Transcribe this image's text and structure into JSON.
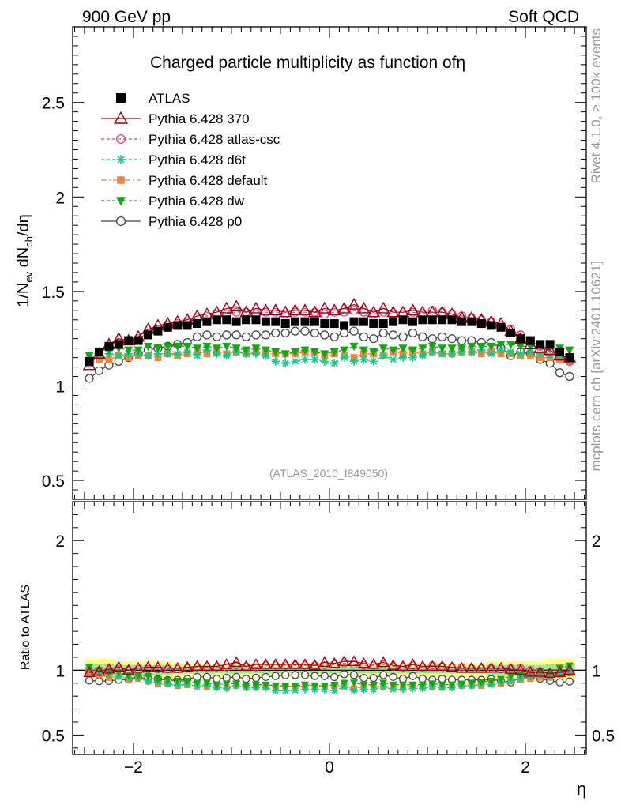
{
  "header": {
    "left": "900 GeV pp",
    "right": "Soft QCD"
  },
  "side_labels": {
    "rivet": "Rivet 4.1.0, ≥ 100k events",
    "mcplots": "mcplots.cern.ch [arXiv:2401.10621]"
  },
  "colors": {
    "atlas": "#000000",
    "p370": "#a00018",
    "atlas_csc": "#ef3f6a",
    "d6t": "#15c98a",
    "default": "#f5853a",
    "dw": "#13a813",
    "p0": "#444444",
    "band_outer": "#ffff80",
    "band_inner": "#9ee39e"
  },
  "chart_data": {
    "type": "scatter",
    "title": "Charged particle multiplicity as function of",
    "title_symbol": "η",
    "watermark": "(ATLAS_2010_I849050)",
    "xlabel": "η",
    "ylabel_main": "1/N",
    "ylabel_sub_ev": "ev",
    "ylabel_mid": " dN",
    "ylabel_sub_ch": "ch",
    "ylabel_tail": "/dη",
    "ylabel_ratio": "Ratio to ATLAS",
    "xlim": [
      -2.62,
      2.62
    ],
    "ylim_main": [
      0.4,
      2.9
    ],
    "ylim_ratio": [
      0.35,
      2.3
    ],
    "xticks": [
      -2,
      0,
      2
    ],
    "xtick_labels": [
      "−2",
      "0",
      "2"
    ],
    "yticks_main": [
      0.5,
      1,
      1.5,
      2,
      2.5
    ],
    "ytick_labels_main": [
      "0.5",
      "1",
      "1.5",
      "2",
      "2.5"
    ],
    "yticks_ratio": [
      0.5,
      1,
      2
    ],
    "ytick_labels_ratio": [
      "0.5",
      "1",
      "2"
    ],
    "x": [
      -2.45,
      -2.35,
      -2.25,
      -2.15,
      -2.05,
      -1.95,
      -1.85,
      -1.75,
      -1.65,
      -1.55,
      -1.45,
      -1.35,
      -1.25,
      -1.15,
      -1.05,
      -0.95,
      -0.85,
      -0.75,
      -0.65,
      -0.55,
      -0.45,
      -0.35,
      -0.25,
      -0.15,
      -0.05,
      0.05,
      0.15,
      0.25,
      0.35,
      0.45,
      0.55,
      0.65,
      0.75,
      0.85,
      0.95,
      1.05,
      1.15,
      1.25,
      1.35,
      1.45,
      1.55,
      1.65,
      1.75,
      1.85,
      1.95,
      2.05,
      2.15,
      2.25,
      2.35,
      2.45
    ],
    "series": [
      {
        "name": "ATLAS",
        "key": "atlas",
        "values": [
          1.13,
          1.18,
          1.21,
          1.22,
          1.24,
          1.24,
          1.27,
          1.29,
          1.31,
          1.32,
          1.32,
          1.33,
          1.34,
          1.35,
          1.35,
          1.34,
          1.35,
          1.35,
          1.34,
          1.34,
          1.33,
          1.34,
          1.34,
          1.34,
          1.33,
          1.33,
          1.32,
          1.34,
          1.34,
          1.33,
          1.33,
          1.34,
          1.35,
          1.34,
          1.35,
          1.35,
          1.35,
          1.35,
          1.34,
          1.34,
          1.33,
          1.32,
          1.31,
          1.28,
          1.25,
          1.24,
          1.22,
          1.22,
          1.18,
          1.15
        ]
      },
      {
        "name": "Pythia 6.428 370",
        "key": "p370",
        "values": [
          1.11,
          1.17,
          1.22,
          1.25,
          1.24,
          1.26,
          1.3,
          1.32,
          1.33,
          1.34,
          1.35,
          1.37,
          1.38,
          1.39,
          1.41,
          1.42,
          1.39,
          1.41,
          1.4,
          1.4,
          1.39,
          1.4,
          1.4,
          1.39,
          1.41,
          1.4,
          1.41,
          1.43,
          1.41,
          1.39,
          1.41,
          1.39,
          1.39,
          1.4,
          1.39,
          1.39,
          1.39,
          1.38,
          1.36,
          1.36,
          1.35,
          1.34,
          1.33,
          1.29,
          1.25,
          1.22,
          1.2,
          1.19,
          1.16,
          1.15
        ]
      },
      {
        "name": "Pythia 6.428 atlas-csc",
        "key": "atlas_csc",
        "values": [
          1.12,
          1.17,
          1.21,
          1.23,
          1.24,
          1.25,
          1.28,
          1.3,
          1.32,
          1.33,
          1.34,
          1.36,
          1.37,
          1.38,
          1.38,
          1.39,
          1.39,
          1.38,
          1.39,
          1.39,
          1.38,
          1.39,
          1.39,
          1.39,
          1.38,
          1.39,
          1.39,
          1.4,
          1.39,
          1.38,
          1.39,
          1.38,
          1.38,
          1.39,
          1.38,
          1.4,
          1.39,
          1.38,
          1.37,
          1.36,
          1.35,
          1.34,
          1.32,
          1.3,
          1.27,
          1.24,
          1.21,
          1.18,
          1.16,
          1.13
        ]
      },
      {
        "name": "Pythia 6.428 d6t",
        "key": "d6t",
        "values": [
          1.15,
          1.16,
          1.17,
          1.16,
          1.17,
          1.17,
          1.16,
          1.17,
          1.17,
          1.17,
          1.18,
          1.16,
          1.19,
          1.17,
          1.16,
          1.18,
          1.17,
          1.17,
          1.16,
          1.13,
          1.12,
          1.13,
          1.14,
          1.14,
          1.13,
          1.12,
          1.15,
          1.13,
          1.14,
          1.13,
          1.16,
          1.14,
          1.15,
          1.15,
          1.16,
          1.18,
          1.17,
          1.17,
          1.18,
          1.18,
          1.19,
          1.17,
          1.19,
          1.18,
          1.17,
          1.18,
          1.17,
          1.16,
          1.16,
          1.15
        ]
      },
      {
        "name": "Pythia 6.428 default",
        "key": "default",
        "values": [
          1.12,
          1.14,
          1.14,
          1.16,
          1.15,
          1.16,
          1.16,
          1.15,
          1.17,
          1.16,
          1.17,
          1.18,
          1.17,
          1.18,
          1.17,
          1.18,
          1.17,
          1.18,
          1.17,
          1.17,
          1.17,
          1.17,
          1.18,
          1.18,
          1.16,
          1.17,
          1.16,
          1.15,
          1.17,
          1.17,
          1.16,
          1.18,
          1.17,
          1.18,
          1.17,
          1.18,
          1.17,
          1.17,
          1.18,
          1.18,
          1.17,
          1.18,
          1.17,
          1.17,
          1.16,
          1.16,
          1.15,
          1.15,
          1.14,
          1.13
        ]
      },
      {
        "name": "Pythia 6.428 dw",
        "key": "dw",
        "values": [
          1.16,
          1.18,
          1.19,
          1.2,
          1.19,
          1.19,
          1.21,
          1.2,
          1.21,
          1.21,
          1.21,
          1.2,
          1.21,
          1.2,
          1.21,
          1.2,
          1.19,
          1.2,
          1.19,
          1.18,
          1.17,
          1.18,
          1.19,
          1.18,
          1.17,
          1.18,
          1.19,
          1.21,
          1.19,
          1.18,
          1.2,
          1.19,
          1.2,
          1.19,
          1.2,
          1.21,
          1.2,
          1.2,
          1.2,
          1.21,
          1.21,
          1.21,
          1.22,
          1.22,
          1.21,
          1.21,
          1.21,
          1.2,
          1.2,
          1.19
        ]
      },
      {
        "name": "Pythia 6.428 p0",
        "key": "p0",
        "values": [
          1.04,
          1.08,
          1.11,
          1.13,
          1.15,
          1.17,
          1.19,
          1.2,
          1.21,
          1.22,
          1.23,
          1.26,
          1.27,
          1.26,
          1.27,
          1.27,
          1.26,
          1.27,
          1.27,
          1.28,
          1.28,
          1.29,
          1.29,
          1.28,
          1.27,
          1.26,
          1.28,
          1.29,
          1.26,
          1.25,
          1.28,
          1.27,
          1.26,
          1.28,
          1.26,
          1.25,
          1.26,
          1.25,
          1.24,
          1.24,
          1.23,
          1.23,
          1.2,
          1.16,
          1.18,
          1.17,
          1.14,
          1.12,
          1.07,
          1.05
        ]
      }
    ]
  }
}
